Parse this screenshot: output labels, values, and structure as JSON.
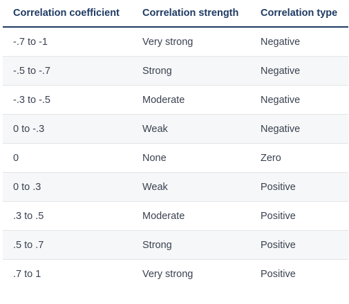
{
  "table": {
    "headers": [
      "Correlation coefficient",
      "Correlation strength",
      "Correlation type"
    ],
    "rows": [
      [
        "-.7 to -1",
        "Very strong",
        "Negative"
      ],
      [
        "-.5 to -.7",
        "Strong",
        "Negative"
      ],
      [
        "-.3 to -.5",
        "Moderate",
        "Negative"
      ],
      [
        "0 to -.3",
        "Weak",
        "Negative"
      ],
      [
        "0",
        "None",
        "Zero"
      ],
      [
        "0 to .3",
        "Weak",
        "Positive"
      ],
      [
        ".3 to .5",
        "Moderate",
        "Positive"
      ],
      [
        ".5 to .7",
        "Strong",
        "Positive"
      ],
      [
        ".7 to 1",
        "Very strong",
        "Positive"
      ]
    ]
  },
  "colors": {
    "header_text": "#1f3a63",
    "header_rule": "#1f3a63",
    "body_text": "#3a4250",
    "stripe": "#f6f7f8",
    "row_rule": "#e3e5e8"
  }
}
